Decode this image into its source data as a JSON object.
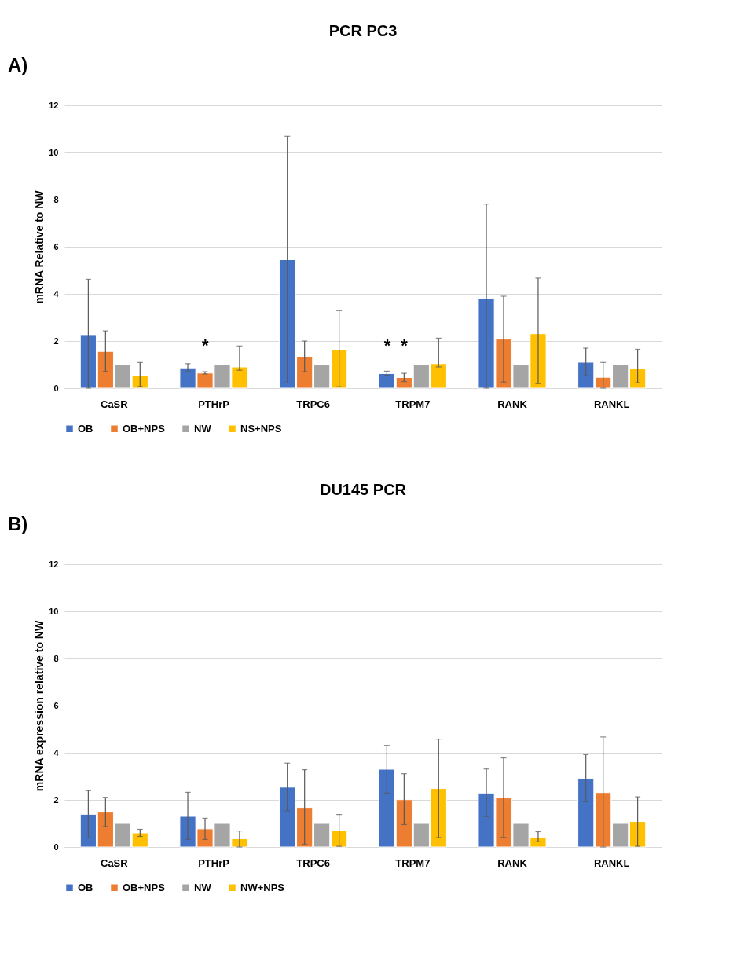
{
  "chart_data": [
    {
      "type": "bar",
      "title": "PCR PC3",
      "ylabel": "mRNA Relative to NW",
      "annotations": [
        "A)",
        "*",
        "*",
        "*"
      ],
      "categories": [
        "CaSR",
        "PTHrP",
        "TRPC6",
        "TRPM7",
        "RANK",
        "RANKL"
      ],
      "series": [
        {
          "name": "OB",
          "color": "#4472c4",
          "values": [
            2.27,
            0.86,
            5.45,
            0.62,
            3.81,
            1.1
          ],
          "errors": [
            [
              0,
              4.62
            ],
            [
              0.71,
              1.04
            ],
            [
              0.22,
              10.69
            ],
            [
              0.55,
              0.72
            ],
            [
              0,
              7.81
            ],
            [
              0.53,
              1.7
            ]
          ]
        },
        {
          "name": "OB+NPS",
          "color": "#ed7d31",
          "values": [
            1.56,
            0.64,
            1.35,
            0.45,
            2.08,
            0.46
          ],
          "errors": [
            [
              0.71,
              2.43
            ],
            [
              0.6,
              0.7
            ],
            [
              0.7,
              2.0
            ],
            [
              0.28,
              0.63
            ],
            [
              0.26,
              3.9
            ],
            [
              0,
              1.09
            ]
          ]
        },
        {
          "name": "NW",
          "color": "#a5a5a5",
          "values": [
            1,
            1,
            1,
            1,
            1,
            1
          ]
        },
        {
          "name": "NS+NPS",
          "color": "#ffc000",
          "values": [
            0.53,
            0.9,
            1.63,
            1.04,
            2.31,
            0.82
          ],
          "errors": [
            [
              0.07,
              1.09
            ],
            [
              0.76,
              1.79
            ],
            [
              0.06,
              3.29
            ],
            [
              0.9,
              2.12
            ],
            [
              0.19,
              4.67
            ],
            [
              0.23,
              1.65
            ]
          ]
        }
      ],
      "ylim": [
        0,
        12
      ],
      "yticks": [
        0,
        2,
        4,
        6,
        8,
        10,
        12
      ],
      "grid": "y",
      "legend": "bottom"
    },
    {
      "type": "bar",
      "title": "DU145 PCR",
      "ylabel": "mRNA expression relative to NW",
      "annotations": [
        "B)"
      ],
      "categories": [
        "CaSR",
        "PTHrP",
        "TRPC6",
        "TRPM7",
        "RANK",
        "RANKL"
      ],
      "series": [
        {
          "name": "OB",
          "color": "#4472c4",
          "values": [
            1.39,
            1.3,
            2.54,
            3.3,
            2.29,
            2.91
          ],
          "errors": [
            [
              0.39,
              2.39
            ],
            [
              0.32,
              2.32
            ],
            [
              1.54,
              3.56
            ],
            [
              2.29,
              4.31
            ],
            [
              1.29,
              3.31
            ],
            [
              1.92,
              3.92
            ]
          ]
        },
        {
          "name": "OB+NPS",
          "color": "#ed7d31",
          "values": [
            1.48,
            0.77,
            1.68,
            2.01,
            2.09,
            2.31
          ],
          "errors": [
            [
              0.87,
              2.11
            ],
            [
              0.32,
              1.22
            ],
            [
              0.12,
              3.28
            ],
            [
              0.95,
              3.11
            ],
            [
              0.41,
              3.78
            ],
            [
              0,
              4.67
            ]
          ]
        },
        {
          "name": "NW",
          "color": "#a5a5a5",
          "values": [
            1,
            1,
            1,
            1,
            1,
            1
          ]
        },
        {
          "name": "NW+NPS",
          "color": "#ffc000",
          "values": [
            0.6,
            0.35,
            0.69,
            2.48,
            0.42,
            1.08
          ],
          "errors": [
            [
              0.45,
              0.75
            ],
            [
              0,
              0.68
            ],
            [
              0.03,
              1.38
            ],
            [
              0.4,
              4.58
            ],
            [
              0.22,
              0.65
            ],
            [
              0.03,
              2.13
            ]
          ]
        }
      ],
      "ylim": [
        0,
        12
      ],
      "yticks": [
        0,
        2,
        4,
        6,
        8,
        10,
        12
      ],
      "grid": "y",
      "legend": "bottom"
    }
  ]
}
